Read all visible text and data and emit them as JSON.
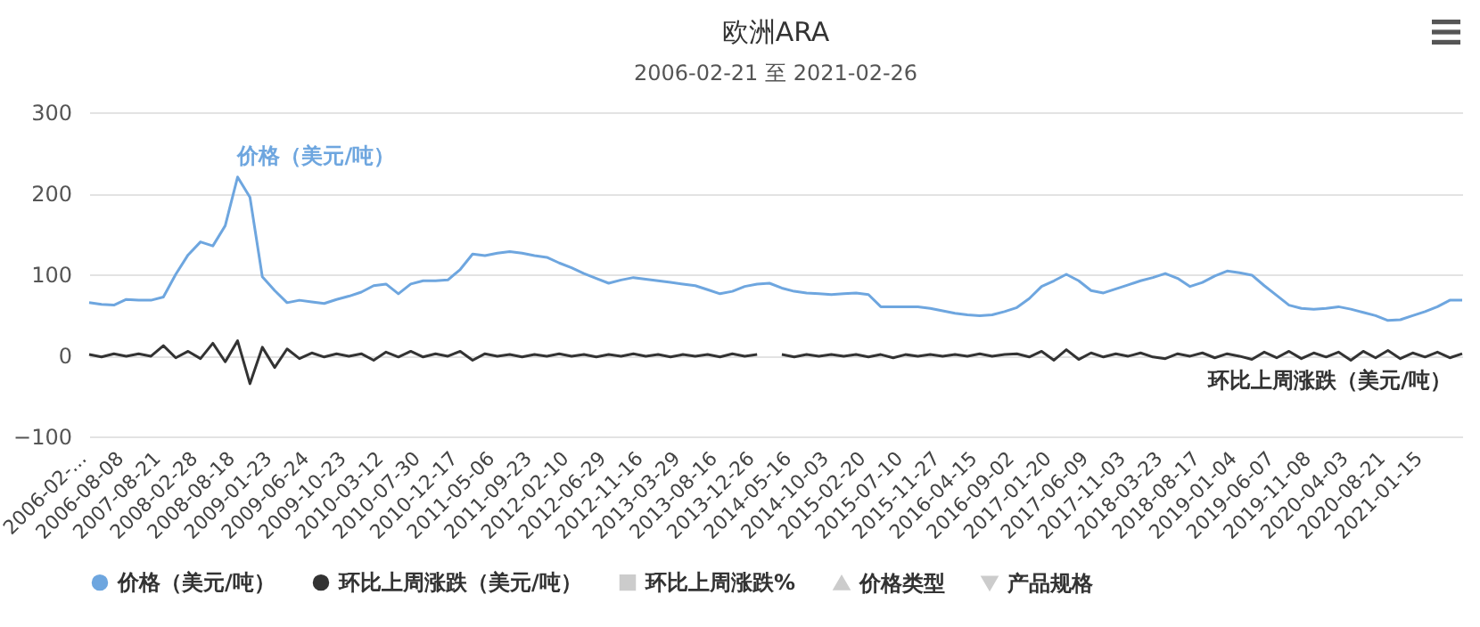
{
  "chart_data": {
    "type": "line",
    "title": "欧洲ARA",
    "subtitle": "2006-02-21 至 2021-02-26",
    "categories": [
      "2006-02-...",
      null,
      null,
      "2006-08-08",
      null,
      null,
      "2007-08-21",
      null,
      null,
      "2008-02-28",
      null,
      null,
      "2008-08-18",
      null,
      null,
      "2009-01-23",
      null,
      null,
      "2009-06-24",
      null,
      null,
      "2009-10-23",
      null,
      null,
      "2010-03-12",
      null,
      null,
      "2010-07-30",
      null,
      null,
      "2010-12-17",
      null,
      null,
      "2011-05-06",
      null,
      null,
      "2011-09-23",
      null,
      null,
      "2012-02-10",
      null,
      null,
      "2012-06-29",
      null,
      null,
      "2012-11-16",
      null,
      null,
      "2013-03-29",
      null,
      null,
      "2013-08-16",
      null,
      null,
      "2013-12-26",
      null,
      null,
      "2014-05-16",
      null,
      null,
      "2014-10-03",
      null,
      null,
      "2015-02-20",
      null,
      null,
      "2015-07-10",
      null,
      null,
      "2015-11-27",
      null,
      null,
      "2016-04-15",
      null,
      null,
      "2016-09-02",
      null,
      null,
      "2017-01-20",
      null,
      null,
      "2017-06-09",
      null,
      null,
      "2017-11-03",
      null,
      null,
      "2018-03-23",
      null,
      null,
      "2018-08-17",
      null,
      null,
      "2019-01-04",
      null,
      null,
      "2019-06-07",
      null,
      null,
      "2019-11-08",
      null,
      null,
      "2020-04-03",
      null,
      null,
      "2020-08-21",
      null,
      null,
      "2021-01-15",
      null,
      null,
      null
    ],
    "series": [
      {
        "name": "价格（美元/吨）",
        "color": "#6ea6df",
        "values": [
          65,
          63,
          62,
          69,
          68,
          68,
          72,
          100,
          124,
          140,
          135,
          160,
          220,
          195,
          97,
          80,
          65,
          68,
          66,
          64,
          69,
          73,
          78,
          86,
          88,
          76,
          88,
          92,
          92,
          93,
          106,
          125,
          123,
          126,
          128,
          126,
          123,
          121,
          114,
          108,
          101,
          95,
          89,
          93,
          96,
          94,
          92,
          90,
          88,
          86,
          81,
          76,
          79,
          85,
          88,
          89,
          83,
          79,
          77,
          76,
          75,
          76,
          77,
          75,
          60,
          60,
          60,
          60,
          58,
          55,
          52,
          50,
          49,
          50,
          54,
          59,
          70,
          85,
          92,
          100,
          92,
          80,
          77,
          82,
          87,
          92,
          96,
          101,
          95,
          85,
          90,
          98,
          104,
          102,
          99,
          86,
          74,
          62,
          58,
          57,
          58,
          60,
          57,
          53,
          49,
          43,
          44,
          49,
          54,
          60,
          68,
          68
        ]
      },
      {
        "name": "环比上周涨跌（美元/吨）",
        "color": "#333333",
        "values": [
          1,
          -2,
          2,
          -1,
          2,
          -1,
          12,
          -3,
          5,
          -4,
          15,
          -8,
          18,
          -35,
          10,
          -15,
          8,
          -4,
          3,
          -2,
          2,
          -1,
          2,
          -6,
          4,
          -2,
          5,
          -2,
          2,
          -1,
          5,
          -6,
          2,
          -1,
          1,
          -2,
          1,
          -1,
          2,
          -1,
          1,
          -2,
          1,
          -1,
          2,
          -1,
          1,
          -2,
          1,
          -1,
          1,
          -2,
          2,
          -1,
          1,
          null,
          1,
          -2,
          1,
          -1,
          1,
          -1,
          1,
          -2,
          1,
          -3,
          1,
          -1,
          1,
          -1,
          1,
          -1,
          2,
          -1,
          1,
          2,
          -2,
          5,
          -6,
          7,
          -5,
          3,
          -2,
          2,
          -1,
          3,
          -2,
          -4,
          2,
          -1,
          3,
          -3,
          2,
          -1,
          -5,
          4,
          -3,
          5,
          -4,
          3,
          -2,
          4,
          -6,
          5,
          -3,
          6,
          -4,
          3,
          -2,
          4,
          -3,
          2
        ]
      }
    ],
    "annotations": [
      "环比上周涨跌%",
      "价格类型",
      "产品规格"
    ],
    "ylim": [
      -100,
      300
    ],
    "yticks": [
      -100,
      0,
      100,
      200,
      300
    ],
    "grid": "y",
    "legend": "bottom"
  }
}
